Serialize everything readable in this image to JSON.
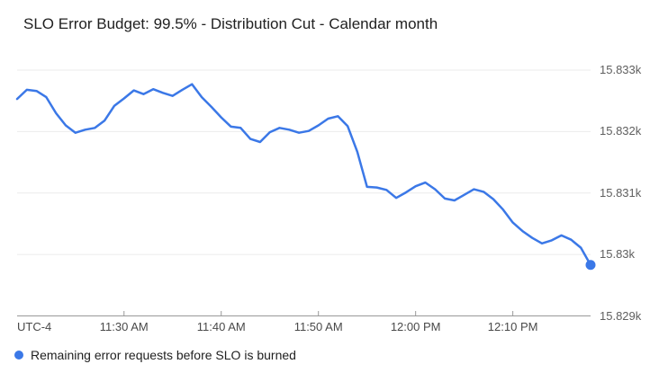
{
  "title": "SLO Error Budget: 99.5% - Distribution Cut - Calendar month",
  "colors": {
    "line": "#3B78E7",
    "gridline": "#ebebeb",
    "axis": "#999999",
    "tick": "#999999",
    "y_label_text": "#5f5f5f",
    "x_label_text": "#494949",
    "title_text": "#212121",
    "background": "#ffffff"
  },
  "x_axis": {
    "corner_label": "UTC-4"
  },
  "legend": {
    "items": [
      {
        "label": "Remaining error requests before SLO is burned",
        "color": "#3B78E7",
        "marker": "circle"
      }
    ],
    "position": "bottom-left"
  },
  "chart_data": {
    "type": "line",
    "title": "SLO Error Budget: 99.5% - Distribution Cut - Calendar month",
    "timezone_label": "UTC-4",
    "grid": true,
    "legend_position": "bottom",
    "end_point_marker": true,
    "ylim": [
      15829,
      15833
    ],
    "xlabel": "",
    "ylabel": "",
    "y_gridlines": [
      {
        "value": 15833,
        "label": "15.833k"
      },
      {
        "value": 15832,
        "label": "15.832k"
      },
      {
        "value": 15831,
        "label": "15.831k"
      },
      {
        "value": 15830,
        "label": "15.83k"
      },
      {
        "value": 15829,
        "label": "15.829k"
      }
    ],
    "x_ticks": [
      {
        "label": "11:30 AM",
        "index": 11
      },
      {
        "label": "11:40 AM",
        "index": 21
      },
      {
        "label": "11:50 AM",
        "index": 31
      },
      {
        "label": "12:00 PM",
        "index": 41
      },
      {
        "label": "12:10 PM",
        "index": 51
      }
    ],
    "x": [
      "11:19 AM",
      "11:20 AM",
      "11:21 AM",
      "11:22 AM",
      "11:23 AM",
      "11:24 AM",
      "11:25 AM",
      "11:26 AM",
      "11:27 AM",
      "11:28 AM",
      "11:29 AM",
      "11:30 AM",
      "11:31 AM",
      "11:32 AM",
      "11:33 AM",
      "11:34 AM",
      "11:35 AM",
      "11:36 AM",
      "11:37 AM",
      "11:38 AM",
      "11:39 AM",
      "11:40 AM",
      "11:41 AM",
      "11:42 AM",
      "11:43 AM",
      "11:44 AM",
      "11:45 AM",
      "11:46 AM",
      "11:47 AM",
      "11:48 AM",
      "11:49 AM",
      "11:50 AM",
      "11:51 AM",
      "11:52 AM",
      "11:53 AM",
      "11:54 AM",
      "11:55 AM",
      "11:56 AM",
      "11:57 AM",
      "11:58 AM",
      "11:59 AM",
      "12:00 PM",
      "12:01 PM",
      "12:02 PM",
      "12:03 PM",
      "12:04 PM",
      "12:05 PM",
      "12:06 PM",
      "12:07 PM",
      "12:08 PM",
      "12:09 PM",
      "12:10 PM",
      "12:11 PM",
      "12:12 PM",
      "12:13 PM",
      "12:14 PM",
      "12:15 PM",
      "12:16 PM",
      "12:17 PM",
      "12:18 PM"
    ],
    "series": [
      {
        "name": "Remaining error requests before SLO is burned",
        "color": "#3B78E7",
        "values": [
          15832.53,
          15832.68,
          15832.66,
          15832.56,
          15832.3,
          15832.1,
          15831.98,
          15832.03,
          15832.06,
          15832.18,
          15832.42,
          15832.54,
          15832.67,
          15832.61,
          15832.69,
          15832.63,
          15832.58,
          15832.68,
          15832.77,
          15832.56,
          15832.4,
          15832.23,
          15832.08,
          15832.06,
          15831.88,
          15831.83,
          15831.99,
          15832.06,
          15832.03,
          15831.98,
          15832.01,
          15832.1,
          15832.21,
          15832.25,
          15832.09,
          15831.67,
          15831.1,
          15831.09,
          15831.05,
          15830.92,
          15831.01,
          15831.11,
          15831.17,
          15831.06,
          15830.91,
          15830.88,
          15830.97,
          15831.06,
          15831.02,
          15830.9,
          15830.73,
          15830.52,
          15830.38,
          15830.27,
          15830.18,
          15830.23,
          15830.31,
          15830.24,
          15830.11,
          15829.83
        ]
      }
    ]
  }
}
